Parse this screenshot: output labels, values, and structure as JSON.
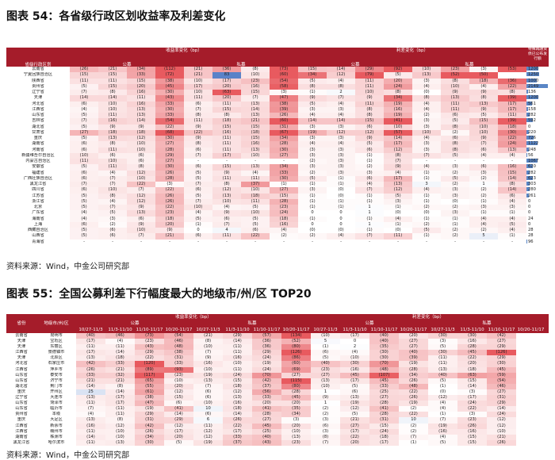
{
  "fig54": {
    "title": "图表 54：各省级行政区划收益率及利差变化",
    "source": "资料来源：Wind，中金公司研究部",
    "headers": {
      "region": "省级行政区划",
      "yield_change": "收益率变化（bp）",
      "spread_change": "利差变化（bp）",
      "public": "公募",
      "private": "私募",
      "special": "特殊再融资债已公布发行额",
      "periods": [
        "10/27-11/3",
        "11/3-11/10",
        "11/10-11/17",
        "10/20-11/17"
      ]
    },
    "rows": [
      [
        "云南省",
        "(26)",
        "(21)",
        "(34)",
        "(112)",
        "(21)",
        "(36)",
        "(8)",
        "(73)",
        "(15)",
        "(14)",
        "(29)",
        "(92)",
        "(10)",
        "(23)",
        "(3)",
        "(53)",
        "1200"
      ],
      [
        "宁夏回族自治区",
        "(15)",
        "(15)",
        "(33)",
        "(72)",
        "(21)",
        "83",
        "(10)",
        "(60)",
        "(34)",
        "(12)",
        "(79)",
        "(5)",
        "(13)",
        "(52)",
        "(50)",
        "",
        "1250"
      ],
      [
        "陕西省",
        "(11)",
        "(11)",
        "(15)",
        "(38)",
        "(10)",
        "(17)",
        "(23)",
        "(54)",
        "(5)",
        "(4)",
        "(11)",
        "(20)",
        "(3)",
        "(8)",
        "(18)",
        "(36)",
        "1000"
      ],
      [
        "贵州省",
        "(5)",
        "(15)",
        "(20)",
        "(45)",
        "(17)",
        "(20)",
        "(16)",
        "(58)",
        "(8)",
        "(8)",
        "(11)",
        "(24)",
        "(4)",
        "(10)",
        "(4)",
        "(22)",
        "2149"
      ],
      [
        "辽宁省",
        "(7)",
        "(8)",
        "(16)",
        "(30)",
        "(10)",
        "(63)",
        "(15)",
        "(3)",
        "(1)",
        "2",
        "(10)",
        "(8)",
        "(0)",
        "(9)",
        "(9)",
        "(8)",
        "136"
      ],
      [
        "天津",
        "(14)",
        "(14)",
        "(11)",
        "(43)",
        "(11)",
        "(20)",
        "(7)",
        "(47)",
        "(9)",
        "(7)",
        "(9)",
        "(34)",
        "(8)",
        "(13)",
        "(8)",
        "(39)",
        "1200"
      ],
      [
        "河北省",
        "(6)",
        "(10)",
        "(16)",
        "(33)",
        "(6)",
        "(11)",
        "(13)",
        "(38)",
        "(5)",
        "(4)",
        "(11)",
        "(19)",
        "(4)",
        "(11)",
        "(13)",
        "(17)",
        "561"
      ],
      [
        "江西省",
        "(4)",
        "(10)",
        "(13)",
        "(30)",
        "(7)",
        "(15)",
        "(14)",
        "(39)",
        "(3)",
        "(3)",
        "(8)",
        "(16)",
        "(4)",
        "(11)",
        "(9)",
        "(17)",
        "158"
      ],
      [
        "山东省",
        "(5)",
        "(11)",
        "(13)",
        "(33)",
        "(8)",
        "(8)",
        "(13)",
        "(26)",
        "(4)",
        "(4)",
        "(8)",
        "(19)",
        "(2)",
        "(6)",
        "(5)",
        "(11)",
        "282"
      ],
      [
        "吉林省",
        "(7)",
        "(16)",
        "(14)",
        "(54)",
        "(11)",
        "(18)",
        "(21)",
        "(60)",
        "(14)",
        "(14)",
        "(15)",
        "(41)",
        "(3)",
        "(5)",
        "(15)",
        "(39)",
        "592"
      ],
      [
        "湖北省",
        "(5)",
        "(9)",
        "(9)",
        "(22)",
        "(9)",
        "(15)",
        "(15)",
        "(31)",
        "(3)",
        "(3)",
        "(6)",
        "(10)",
        "(3)",
        "(8)",
        "(10)",
        "(18)",
        "0"
      ],
      [
        "甘肃省",
        "(27)",
        "(18)",
        "(18)",
        "(68)",
        "(22)",
        "(16)",
        "(18)",
        "(67)",
        "(19)",
        "(12)",
        "(12)",
        "(57)",
        "(10)",
        "(2)",
        "(10)",
        "(30)",
        "220"
      ],
      [
        "重庆",
        "(5)",
        "(13)",
        "(12)",
        "(30)",
        "(9)",
        "(11)",
        "(15)",
        "(34)",
        "(3)",
        "(3)",
        "(9)",
        "(14)",
        "(4)",
        "(6)",
        "(9)",
        "(22)",
        "726"
      ],
      [
        "湖南省",
        "(6)",
        "(8)",
        "(10)",
        "(27)",
        "(8)",
        "(11)",
        "(16)",
        "(28)",
        "(4)",
        "(4)",
        "(5)",
        "(17)",
        "(3)",
        "(8)",
        "(7)",
        "(24)",
        "1122"
      ],
      [
        "河南省",
        "(6)",
        "(11)",
        "(10)",
        "(28)",
        "(6)",
        "(11)",
        "(13)",
        "(30)",
        "(3)",
        "(3)",
        "(6)",
        "(12)",
        "(3)",
        "(8)",
        "(6)",
        "(13)",
        "248"
      ],
      [
        "新疆维吾尔自治区",
        "(10)",
        "(6)",
        "(6)",
        "(29)",
        "(7)",
        "(17)",
        "(10)",
        "(27)",
        "(3)",
        "(3)",
        "(1)",
        "(8)",
        "(7)",
        "(5)",
        "(4)",
        "(4)",
        "56"
      ],
      [
        "内蒙古自治区",
        "(11)",
        "(10)",
        "(6)",
        "(27)",
        "-",
        "-",
        "-",
        "-",
        "(2)",
        "(3)",
        "(1)",
        "(7)",
        "-",
        "-",
        "-",
        "-",
        "1067"
      ],
      [
        "安徽省",
        "(5)",
        "(11)",
        "(8)",
        "(30)",
        "(6)",
        "(15)",
        "(13)",
        "(34)",
        "(3)",
        "(3)",
        "(2)",
        "(9)",
        "(4)",
        "(3)",
        "(6)",
        "(16)",
        "620"
      ],
      [
        "福建省",
        "(6)",
        "(4)",
        "(12)",
        "(26)",
        "(5)",
        "(9)",
        "(4)",
        "(33)",
        "(2)",
        "(3)",
        "(3)",
        "(4)",
        "(1)",
        "(2)",
        "(3)",
        "(15)",
        "282"
      ],
      [
        "广西壮族自治区",
        "(6)",
        "(7)",
        "(10)",
        "(28)",
        "(5)",
        "(11)",
        "(11)",
        "(30)",
        "(5)",
        "(1)",
        "(6)",
        "(17)",
        "(1)",
        "(5)",
        "(2)",
        "(14)",
        "623"
      ],
      [
        "黑龙江省",
        "(7)",
        "(7)",
        "(22)",
        "(3)",
        "(7)",
        "(8)",
        "(37)",
        "(1)",
        "(1)",
        "(1)",
        "(4)",
        "(13)",
        "3",
        "(2)",
        "1",
        "(8)",
        "303"
      ],
      [
        "四川省",
        "(6)",
        "(10)",
        "(7)",
        "(22)",
        "(6)",
        "(12)",
        "(10)",
        "(27)",
        "(3)",
        "(0)",
        "(7)",
        "(12)",
        "(4)",
        "(3)",
        "(2)",
        "(14)",
        "280"
      ],
      [
        "江苏省",
        "(5)",
        "(8)",
        "(12)",
        "(26)",
        "(5)",
        "(13)",
        "(18)",
        "(15)",
        "(1)",
        "(0)",
        "(1)",
        "(5)",
        "(1)",
        "(3)",
        "(2)",
        "(6)",
        "261"
      ],
      [
        "浙江省",
        "(5)",
        "(4)",
        "(12)",
        "(26)",
        "(7)",
        "(10)",
        "(11)",
        "(28)",
        "(1)",
        "(1)",
        "(1)",
        "(3)",
        "(1)",
        "(0)",
        "(1)",
        "(4)",
        "0"
      ],
      [
        "北京",
        "(5)",
        "(7)",
        "(9)",
        "(22)",
        "(10)",
        "(4)",
        "(5)",
        "(23)",
        "(1)",
        "(1)",
        "1",
        "(1)",
        "(2)",
        "(2)",
        "(3)",
        "(3)",
        "0"
      ],
      [
        "广东省",
        "(4)",
        "(5)",
        "(13)",
        "(23)",
        "(4)",
        "(9)",
        "(10)",
        "(24)",
        "0",
        "0",
        "1",
        "(0)",
        "(0)",
        "(3)",
        "(1)",
        "(1)",
        "0"
      ],
      [
        "海南省",
        "(4)",
        "(3)",
        "(6)",
        "(18)",
        "(5)",
        "(6)",
        "(5)",
        "(18)",
        "(1)",
        "0",
        "(1)",
        "(4)",
        "(1)",
        "(1)",
        "(4)",
        "(4)",
        "24"
      ],
      [
        "上海",
        "(6)",
        "(2)",
        "(9)",
        "(20)",
        "(1)",
        "(7)",
        "(5)",
        "(16)",
        "0",
        "0",
        "1",
        "(1)",
        "(2)",
        "(1)",
        "(4)",
        "(5)",
        "0"
      ],
      [
        "西藏自治区",
        "(5)",
        "(6)",
        "(10)",
        "(9)",
        "0",
        "4",
        "(6)",
        "(4)",
        "(0)",
        "(0)",
        "(1)",
        "(0)",
        "(5)",
        "(2)",
        "(2)",
        "(4)",
        "28"
      ],
      [
        "山西省",
        "(5)",
        "(6)",
        "(7)",
        "(21)",
        "(6)",
        "(11)",
        "(22)",
        "(2)",
        "(2)",
        "(4)",
        "(7)",
        "(11)",
        "(1)",
        "(2)",
        "5",
        "(1)",
        "28"
      ],
      [
        "青海省",
        "-",
        "-",
        "-",
        "-",
        "-",
        "-",
        "-",
        "-",
        "-",
        "-",
        "-",
        "-",
        "-",
        "-",
        "-",
        "-",
        "96"
      ]
    ]
  },
  "fig55": {
    "title": "图表 55：全国公募利差下行幅度最大的地级市/州/区 TOP20",
    "source": "资料来源：Wind，中金公司研究部",
    "headers": {
      "province": "省份",
      "city": "地级市/州/区",
      "yield_change": "收益率变化（bp）",
      "spread_change": "利差变化（bp）",
      "public": "公募",
      "private": "私募",
      "periods": [
        "10/27-11/3",
        "11/3-11/10",
        "11/10-11/17",
        "10/20-11/17"
      ]
    },
    "rows": [
      [
        "云南省",
        "昆明市",
        "(40)",
        "(46)",
        "(73)",
        "(54)",
        "(21)",
        "(29)",
        "(57)",
        "(134)",
        "(10)",
        "(17)",
        "(40)",
        "(20)",
        "(30)",
        "(30)",
        "(42)"
      ],
      [
        "天津",
        "宝坻区",
        "(17)",
        "(4)",
        "(23)",
        "(46)",
        "(8)",
        "(14)",
        "(36)",
        "(52)",
        "5",
        "0",
        "(40)",
        "(27)",
        "(3)",
        "(16)",
        "(27)"
      ],
      [
        "天津",
        "东丽区",
        "(11)",
        "(11)",
        "(43)",
        "(48)",
        "(10)",
        "(11)",
        "(36)",
        "(80)",
        "(1)",
        "2",
        "(35)",
        "(27)",
        "(5)",
        "(28)",
        "(29)"
      ],
      [
        "江西省",
        "景德镇市",
        "(17)",
        "(14)",
        "(29)",
        "(38)",
        "(7)",
        "(11)",
        "(29)",
        "(126)",
        "(6)",
        "(4)",
        "(30)",
        "(40)",
        "(30)",
        "(45)",
        "(126)"
      ],
      [
        "天津",
        "北辰区",
        "(13)",
        "(18)",
        "(22)",
        "(31)",
        "(9)",
        "(16)",
        "(24)",
        "(86)",
        "(5)",
        "(10)",
        "(30)",
        "(39)",
        "(11)",
        "(22)",
        "(29)"
      ],
      [
        "河北省",
        "石家庄市",
        "(42)",
        "(33)",
        "(120)",
        "(33)",
        "(16)",
        "(10)",
        "(19)",
        "(60)",
        "(40)",
        "(30)",
        "(70)",
        "(19)",
        "(11)",
        "(20)",
        "(30)"
      ],
      [
        "江西省",
        "萍乡市",
        "(26)",
        "(21)",
        "(89)",
        "(93)",
        "(10)",
        "(11)",
        "(24)",
        "(69)",
        "(23)",
        "(16)",
        "(48)",
        "(28)",
        "(13)",
        "(18)",
        "(45)"
      ],
      [
        "山东省",
        "泰安市",
        "(33)",
        "(32)",
        "(117)",
        "(23)",
        "(19)",
        "(24)",
        "(70)",
        "(27)",
        "(27)",
        "(45)",
        "(107)",
        "(34)",
        "(40)",
        "(63)",
        "(59)"
      ],
      [
        "山东省",
        "济宁市",
        "(21)",
        "(21)",
        "(65)",
        "(10)",
        "(13)",
        "(15)",
        "(42)",
        "(115)",
        "(13)",
        "(17)",
        "(45)",
        "(26)",
        "(5)",
        "(15)",
        "(54)"
      ],
      [
        "湖北省",
        "荆门市",
        "(14)",
        "(8)",
        "(55)",
        "(20)",
        "(7)",
        "(18)",
        "(37)",
        "(80)",
        "(10)",
        "(5)",
        "(33)",
        "(48)",
        "(1)",
        "(14)",
        "(46)"
      ],
      [
        "重庆",
        "开州区",
        "25",
        "(14)",
        "(61)",
        "(12)",
        "(6)",
        "(12)",
        "(56)",
        "(28)",
        "1",
        "(6)",
        "(25)",
        "(22)",
        "(0)",
        "(3)",
        "(27)"
      ],
      [
        "辽宁省",
        "大连市",
        "(13)",
        "(17)",
        "(38)",
        "(15)",
        "(6)",
        "(13)",
        "(33)",
        "(45)",
        "(9)",
        "(13)",
        "(27)",
        "(26)",
        "(12)",
        "(17)",
        "(31)"
      ],
      [
        "山东省",
        "菏泽市",
        "(11)",
        "(17)",
        "(47)",
        "(6)",
        "(10)",
        "(16)",
        "(20)",
        "(20)",
        "1",
        "(19)",
        "(28)",
        "(19)",
        "(4)",
        "(24)",
        "(29)"
      ],
      [
        "山东省",
        "临沂市",
        "(7)",
        "(11)",
        "(19)",
        "(41)",
        "10",
        "(18)",
        "(41)",
        "(35)",
        "(2)",
        "(12)",
        "(41)",
        "(2)",
        "(4)",
        "(22)",
        "(14)"
      ],
      [
        "贵州省",
        "本级",
        "(4)",
        "(11)",
        "(29)",
        "(14)",
        "(6)",
        "(14)",
        "(28)",
        "(34)",
        "(2)",
        "(5)",
        "(28)",
        "(22)",
        "(1)",
        "(3)",
        "(24)"
      ],
      [
        "重庆",
        "大足区",
        "(13)",
        "(8)",
        "(31)",
        "(29)",
        "6",
        "(26)",
        "(27)",
        "(3)",
        "(3)",
        "(21)",
        "(31)",
        "10",
        "(7)",
        "(23)",
        "(12)"
      ],
      [
        "江西省",
        "新余市",
        "(16)",
        "(12)",
        "(42)",
        "(12)",
        "(11)",
        "(22)",
        "(45)",
        "(20)",
        "(6)",
        "(27)",
        "(15)",
        "(2)",
        "(19)",
        "(26)",
        "(12)"
      ],
      [
        "江西省",
        "赣州市",
        "(11)",
        "(10)",
        "(26)",
        "(17)",
        "(12)",
        "(17)",
        "(25)",
        "(10)",
        "(3)",
        "(17)",
        "(24)",
        "(2)",
        "(16)",
        "(16)",
        "(10)"
      ],
      [
        "湖南省",
        "株洲市",
        "(14)",
        "(10)",
        "(34)",
        "(20)",
        "(12)",
        "(33)",
        "(40)",
        "(13)",
        "(8)",
        "(22)",
        "(18)",
        "(7)",
        "(4)",
        "(15)",
        "(21)"
      ],
      [
        "黑龙江省",
        "哈尔滨市",
        "(11)",
        "(13)",
        "(30)",
        "(5)",
        "(19)",
        "(37)",
        "(43)",
        "(23)",
        "(7)",
        "(20)",
        "(17)",
        "(1)",
        "(5)",
        "(15)",
        "(26)"
      ]
    ]
  }
}
